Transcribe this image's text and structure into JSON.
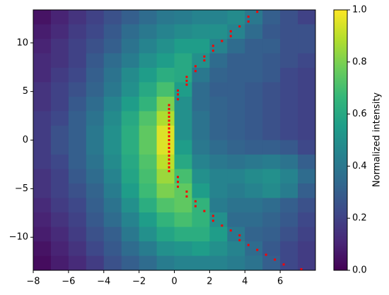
{
  "chart_data": {
    "type": "heatmap",
    "colormap": "viridis",
    "xlim": [
      -8,
      8
    ],
    "ylim": [
      -13.4,
      13.4
    ],
    "xticks": [
      {
        "value": -8,
        "label": "−8"
      },
      {
        "value": -6,
        "label": "−6"
      },
      {
        "value": -4,
        "label": "−4"
      },
      {
        "value": -2,
        "label": "−2"
      },
      0,
      2,
      4,
      6
    ],
    "yticks": [
      {
        "value": -10,
        "label": "−10"
      },
      {
        "value": -5,
        "label": "−5"
      },
      0,
      5,
      10
    ],
    "z": [
      [
        0.05,
        0.1,
        0.15,
        0.2,
        0.25,
        0.3,
        0.35,
        0.4,
        0.42,
        0.45,
        0.45,
        0.48,
        0.4,
        0.3,
        0.25,
        0.2
      ],
      [
        0.08,
        0.12,
        0.18,
        0.22,
        0.28,
        0.35,
        0.4,
        0.45,
        0.48,
        0.5,
        0.5,
        0.45,
        0.35,
        0.28,
        0.25,
        0.25
      ],
      [
        0.1,
        0.15,
        0.2,
        0.25,
        0.3,
        0.38,
        0.45,
        0.5,
        0.55,
        0.55,
        0.45,
        0.35,
        0.3,
        0.3,
        0.25,
        0.25
      ],
      [
        0.12,
        0.15,
        0.2,
        0.28,
        0.35,
        0.42,
        0.5,
        0.55,
        0.6,
        0.5,
        0.35,
        0.3,
        0.3,
        0.28,
        0.25,
        0.22
      ],
      [
        0.12,
        0.18,
        0.22,
        0.3,
        0.38,
        0.48,
        0.55,
        0.62,
        0.6,
        0.4,
        0.32,
        0.3,
        0.3,
        0.28,
        0.22,
        0.2
      ],
      [
        0.15,
        0.2,
        0.25,
        0.32,
        0.4,
        0.5,
        0.6,
        0.7,
        0.55,
        0.35,
        0.3,
        0.3,
        0.28,
        0.25,
        0.22,
        0.2
      ],
      [
        0.15,
        0.2,
        0.28,
        0.35,
        0.45,
        0.55,
        0.65,
        0.8,
        0.5,
        0.35,
        0.32,
        0.3,
        0.28,
        0.25,
        0.22,
        0.2
      ],
      [
        0.18,
        0.22,
        0.3,
        0.38,
        0.48,
        0.6,
        0.72,
        0.88,
        0.5,
        0.38,
        0.32,
        0.3,
        0.28,
        0.25,
        0.22,
        0.2
      ],
      [
        0.18,
        0.25,
        0.3,
        0.4,
        0.5,
        0.62,
        0.75,
        0.95,
        0.5,
        0.38,
        0.32,
        0.3,
        0.28,
        0.25,
        0.22,
        0.2
      ],
      [
        0.18,
        0.25,
        0.3,
        0.4,
        0.5,
        0.62,
        0.75,
        0.95,
        0.55,
        0.4,
        0.35,
        0.32,
        0.3,
        0.3,
        0.28,
        0.22
      ],
      [
        0.18,
        0.22,
        0.3,
        0.38,
        0.48,
        0.6,
        0.72,
        0.9,
        0.6,
        0.45,
        0.4,
        0.38,
        0.4,
        0.42,
        0.38,
        0.3
      ],
      [
        0.15,
        0.2,
        0.28,
        0.35,
        0.45,
        0.58,
        0.7,
        0.85,
        0.7,
        0.5,
        0.45,
        0.45,
        0.48,
        0.5,
        0.45,
        0.35
      ],
      [
        0.15,
        0.2,
        0.25,
        0.32,
        0.42,
        0.55,
        0.68,
        0.8,
        0.75,
        0.55,
        0.45,
        0.42,
        0.45,
        0.48,
        0.42,
        0.3
      ],
      [
        0.12,
        0.18,
        0.22,
        0.3,
        0.38,
        0.5,
        0.62,
        0.72,
        0.75,
        0.65,
        0.42,
        0.38,
        0.38,
        0.35,
        0.3,
        0.25
      ],
      [
        0.1,
        0.15,
        0.2,
        0.28,
        0.35,
        0.45,
        0.55,
        0.65,
        0.7,
        0.65,
        0.5,
        0.35,
        0.35,
        0.32,
        0.28,
        0.22
      ],
      [
        0.08,
        0.12,
        0.18,
        0.25,
        0.3,
        0.4,
        0.5,
        0.58,
        0.62,
        0.62,
        0.55,
        0.4,
        0.32,
        0.3,
        0.25,
        0.2
      ],
      [
        0.05,
        0.1,
        0.15,
        0.22,
        0.28,
        0.35,
        0.42,
        0.5,
        0.52,
        0.55,
        0.5,
        0.45,
        0.35,
        0.28,
        0.22,
        0.18
      ],
      [
        0.03,
        0.08,
        0.12,
        0.18,
        0.25,
        0.3,
        0.35,
        0.42,
        0.45,
        0.45,
        0.45,
        0.42,
        0.38,
        0.3,
        0.22,
        0.18
      ]
    ],
    "clim": [
      0,
      1
    ],
    "cticks": [
      0.0,
      0.2,
      0.4,
      0.6,
      0.8,
      1.0
    ],
    "cticks_labels": [
      "0.0",
      "0.2",
      "0.4",
      "0.6",
      "0.8",
      "1.0"
    ],
    "colorbar_label": "Normalized intensity",
    "series": [
      {
        "type": "scatter",
        "color": "#ff0000",
        "x": [
          -0.3,
          -0.3,
          -0.3,
          -0.3,
          -0.3,
          -0.3,
          -0.3,
          -0.3,
          -0.3,
          -0.3,
          -0.3,
          -0.3,
          -0.3,
          -0.3,
          -0.3,
          -0.3,
          -0.3,
          -0.3,
          0.2,
          0.2,
          0.2,
          0.7,
          0.7,
          0.7,
          1.2,
          1.2,
          1.7,
          1.7,
          2.2,
          2.2,
          2.7,
          3.2,
          3.2,
          3.7,
          4.2,
          4.2,
          4.7,
          0.2,
          0.2,
          0.2,
          0.7,
          0.7,
          1.2,
          1.2,
          1.7,
          2.2,
          2.2,
          2.7,
          3.2,
          3.7,
          3.7,
          4.2,
          4.7,
          5.2,
          5.7,
          6.2,
          7.2
        ],
        "y": [
          3.6,
          3.2,
          2.8,
          2.4,
          2.0,
          1.6,
          1.2,
          0.8,
          0.4,
          0,
          -0.4,
          -0.8,
          -1.2,
          -1.6,
          -2.0,
          -2.4,
          -2.8,
          -3.2,
          5.1,
          4.7,
          4.2,
          6.5,
          6.1,
          5.7,
          7.6,
          7.1,
          8.6,
          8.2,
          9.7,
          9.2,
          10.2,
          11.2,
          10.7,
          11.7,
          12.7,
          12.2,
          13.2,
          -3.8,
          -4.3,
          -4.8,
          -5.3,
          -5.8,
          -6.3,
          -6.8,
          -7.3,
          -7.8,
          -8.3,
          -8.8,
          -9.3,
          -9.8,
          -10.3,
          -10.8,
          -11.3,
          -11.8,
          -12.3,
          -12.8,
          -13.3
        ]
      }
    ]
  }
}
